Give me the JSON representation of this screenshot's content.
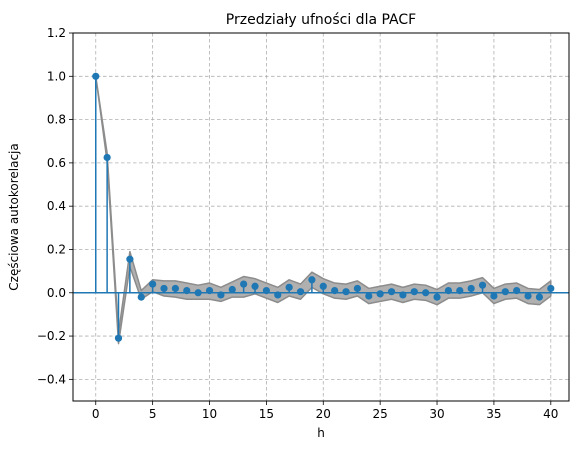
{
  "chart_data": {
    "type": "stem",
    "title": "Przedziały ufności dla PACF",
    "xlabel": "h",
    "ylabel": "Częściowa autokorelacja",
    "xlim": [
      -2,
      41.6
    ],
    "ylim": [
      -0.5,
      1.2
    ],
    "xticks": [
      0,
      5,
      10,
      15,
      20,
      25,
      30,
      35,
      40
    ],
    "yticks": [
      -0.4,
      -0.2,
      0.0,
      0.2,
      0.4,
      0.6,
      0.8,
      1.0,
      1.2
    ],
    "ytick_labels": [
      "−0.4",
      "−0.2",
      "0.0",
      "0.2",
      "0.4",
      "0.6",
      "0.8",
      "1.0",
      "1.2"
    ],
    "grid": true,
    "series": [
      {
        "x": [
          0,
          1,
          2,
          3,
          4,
          5,
          6,
          7,
          8,
          9,
          10,
          11,
          12,
          13,
          14,
          15,
          16,
          17,
          18,
          19,
          20,
          21,
          22,
          23,
          24,
          25,
          26,
          27,
          28,
          29,
          30,
          31,
          32,
          33,
          34,
          35,
          36,
          37,
          38,
          39,
          40
        ],
        "values": [
          1.0,
          0.625,
          -0.21,
          0.155,
          -0.02,
          0.04,
          0.02,
          0.02,
          0.01,
          0.0,
          0.01,
          -0.01,
          0.015,
          0.04,
          0.03,
          0.01,
          -0.01,
          0.025,
          0.005,
          0.06,
          0.03,
          0.01,
          0.005,
          0.02,
          -0.015,
          -0.005,
          0.005,
          -0.01,
          0.005,
          0.0,
          -0.02,
          0.01,
          0.01,
          0.02,
          0.035,
          -0.015,
          0.005,
          0.01,
          -0.015,
          -0.02,
          0.02
        ]
      }
    ],
    "confidence_band": {
      "lower": [
        1.0,
        0.605,
        -0.235,
        0.12,
        -0.03,
        0.005,
        -0.015,
        -0.02,
        -0.03,
        -0.03,
        -0.03,
        -0.04,
        -0.02,
        -0.02,
        -0.005,
        -0.025,
        -0.045,
        -0.015,
        -0.03,
        0.025,
        -0.005,
        -0.025,
        -0.03,
        -0.015,
        -0.05,
        -0.04,
        -0.03,
        -0.045,
        -0.03,
        -0.035,
        -0.055,
        -0.025,
        -0.025,
        -0.015,
        0.0,
        -0.05,
        -0.03,
        -0.025,
        -0.05,
        -0.055,
        -0.015
      ],
      "upper": [
        1.0,
        0.645,
        -0.185,
        0.19,
        0.01,
        0.06,
        0.055,
        0.055,
        0.045,
        0.035,
        0.045,
        0.025,
        0.05,
        0.075,
        0.065,
        0.045,
        0.025,
        0.06,
        0.04,
        0.095,
        0.065,
        0.045,
        0.04,
        0.055,
        0.02,
        0.03,
        0.04,
        0.025,
        0.04,
        0.035,
        0.015,
        0.045,
        0.045,
        0.055,
        0.07,
        0.02,
        0.04,
        0.045,
        0.02,
        0.015,
        0.055
      ]
    },
    "colors": {
      "stem": "#1f77b4",
      "band_fill": "#b0b0b0",
      "band_edge": "#8c8c8c",
      "grid": "#b0b0b0",
      "axis": "#000000"
    }
  }
}
